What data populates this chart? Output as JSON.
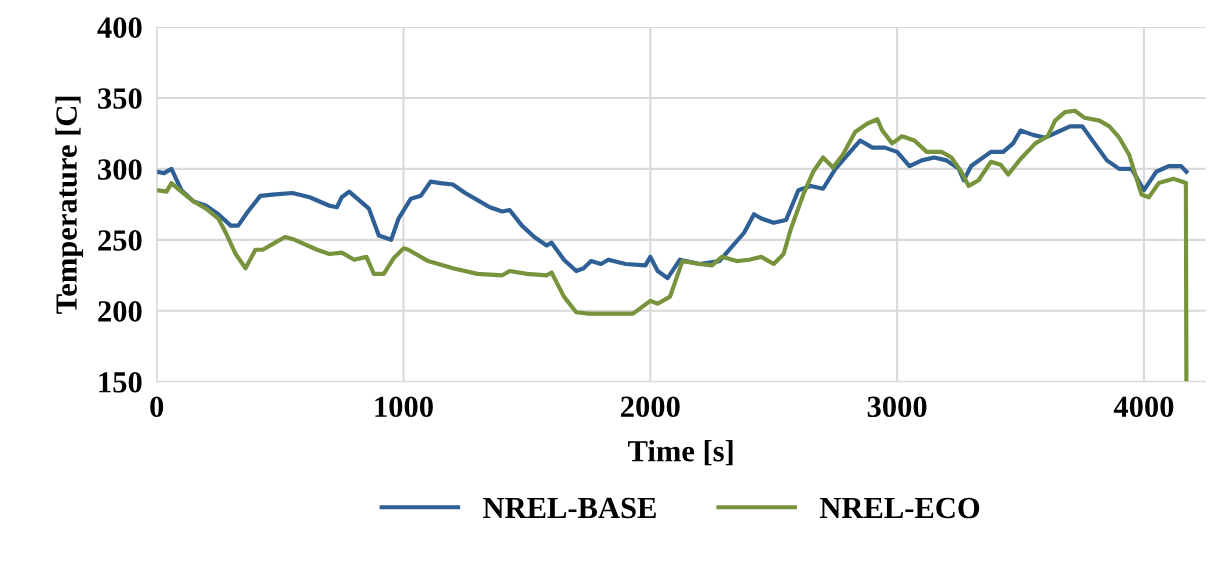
{
  "chart_data": {
    "type": "line",
    "xlabel": "Time [s]",
    "ylabel": "Temperature [C]",
    "xlim": [
      0,
      4250
    ],
    "xticks": [
      0,
      1000,
      2000,
      3000,
      4000
    ],
    "ylim": [
      150,
      400
    ],
    "yticks": [
      150,
      200,
      250,
      300,
      350,
      400
    ],
    "grid": true,
    "legend": "bottom",
    "marker": "none",
    "line_style": "solid",
    "series": [
      {
        "name": "NREL-BASE",
        "color": "#2e5f95",
        "x": [
          0,
          30,
          60,
          100,
          150,
          200,
          250,
          300,
          330,
          370,
          420,
          480,
          550,
          620,
          700,
          730,
          750,
          780,
          820,
          860,
          900,
          950,
          980,
          1030,
          1070,
          1110,
          1150,
          1200,
          1250,
          1300,
          1350,
          1400,
          1430,
          1480,
          1530,
          1580,
          1600,
          1650,
          1700,
          1730,
          1760,
          1800,
          1830,
          1900,
          1980,
          2000,
          2030,
          2070,
          2120,
          2200,
          2280,
          2330,
          2380,
          2420,
          2450,
          2500,
          2550,
          2600,
          2650,
          2700,
          2750,
          2800,
          2850,
          2900,
          2950,
          3000,
          3050,
          3100,
          3150,
          3200,
          3250,
          3270,
          3300,
          3380,
          3430,
          3470,
          3500,
          3550,
          3600,
          3650,
          3700,
          3750,
          3800,
          3850,
          3900,
          3950,
          4000,
          4050,
          4100,
          4150,
          4172
        ],
        "values": [
          298,
          297,
          300,
          285,
          277,
          274,
          268,
          260,
          260,
          270,
          281,
          282,
          283,
          280,
          274,
          273,
          280,
          284,
          278,
          272,
          253,
          250,
          265,
          279,
          281,
          291,
          290,
          289,
          283,
          278,
          273,
          270,
          271,
          260,
          252,
          246,
          248,
          236,
          228,
          230,
          235,
          233,
          236,
          233,
          232,
          238,
          228,
          223,
          236,
          233,
          235,
          245,
          255,
          268,
          265,
          262,
          264,
          285,
          288,
          286,
          300,
          310,
          320,
          315,
          315,
          312,
          302,
          306,
          308,
          306,
          300,
          292,
          302,
          312,
          312,
          318,
          327,
          324,
          322,
          326,
          330,
          330,
          318,
          306,
          300,
          300,
          285,
          298,
          302,
          302,
          298
        ]
      },
      {
        "name": "NREL-ECO",
        "color": "#77933c",
        "x": [
          0,
          40,
          60,
          100,
          150,
          200,
          250,
          280,
          320,
          360,
          400,
          430,
          480,
          520,
          560,
          650,
          700,
          750,
          800,
          850,
          880,
          920,
          960,
          1000,
          1020,
          1100,
          1200,
          1300,
          1400,
          1430,
          1500,
          1580,
          1600,
          1650,
          1700,
          1750,
          1800,
          1930,
          2000,
          2030,
          2080,
          2100,
          2130,
          2200,
          2250,
          2290,
          2350,
          2400,
          2450,
          2500,
          2540,
          2570,
          2620,
          2660,
          2700,
          2740,
          2780,
          2830,
          2880,
          2920,
          2940,
          2980,
          3020,
          3070,
          3120,
          3180,
          3220,
          3260,
          3290,
          3330,
          3380,
          3420,
          3450,
          3500,
          3560,
          3610,
          3640,
          3680,
          3720,
          3760,
          3820,
          3860,
          3900,
          3940,
          3990,
          4020,
          4060,
          4120,
          4170,
          4172
        ],
        "values": [
          285,
          284,
          290,
          284,
          277,
          272,
          265,
          255,
          240,
          230,
          243,
          243,
          248,
          252,
          250,
          243,
          240,
          241,
          236,
          238,
          226,
          226,
          237,
          244,
          243,
          235,
          230,
          226,
          225,
          228,
          226,
          225,
          227,
          210,
          199,
          198,
          198,
          198,
          207,
          205,
          210,
          220,
          235,
          233,
          232,
          238,
          235,
          236,
          238,
          233,
          240,
          258,
          282,
          298,
          308,
          301,
          310,
          326,
          332,
          335,
          327,
          318,
          323,
          320,
          312,
          312,
          308,
          298,
          288,
          292,
          305,
          303,
          296,
          307,
          318,
          323,
          334,
          340,
          341,
          336,
          334,
          330,
          322,
          310,
          282,
          280,
          290,
          293,
          290,
          150
        ]
      }
    ]
  }
}
